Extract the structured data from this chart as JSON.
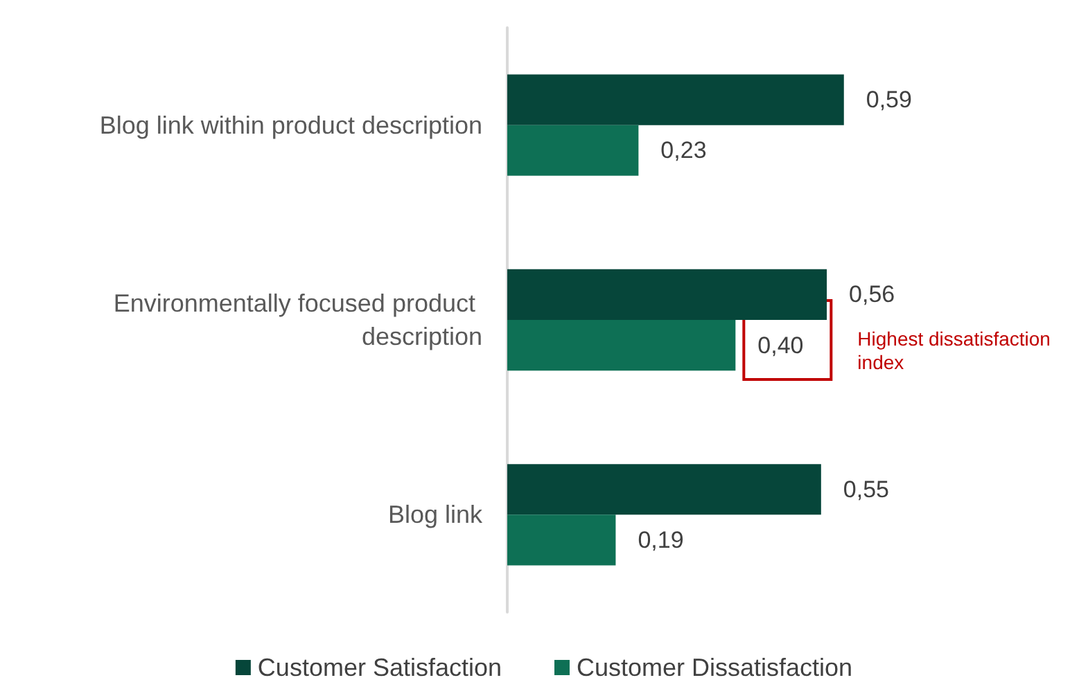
{
  "chart_data": {
    "type": "bar",
    "orientation": "horizontal",
    "categories": [
      "Blog link within product description",
      "Environmentally focused product description",
      "Blog link"
    ],
    "series": [
      {
        "name": "Customer Satisfaction",
        "color": "#06463a",
        "values": [
          0.59,
          0.56,
          0.55
        ],
        "value_labels": [
          "0,59",
          "0,56",
          "0,55"
        ]
      },
      {
        "name": "Customer Dissatisfaction",
        "color": "#0e7055",
        "values": [
          0.23,
          0.4,
          0.19
        ],
        "value_labels": [
          "0,23",
          "0,40",
          "0,19"
        ]
      }
    ],
    "annotations": [
      "Highest dissatisfaction index"
    ],
    "legend": "bottom",
    "grid": false
  }
}
